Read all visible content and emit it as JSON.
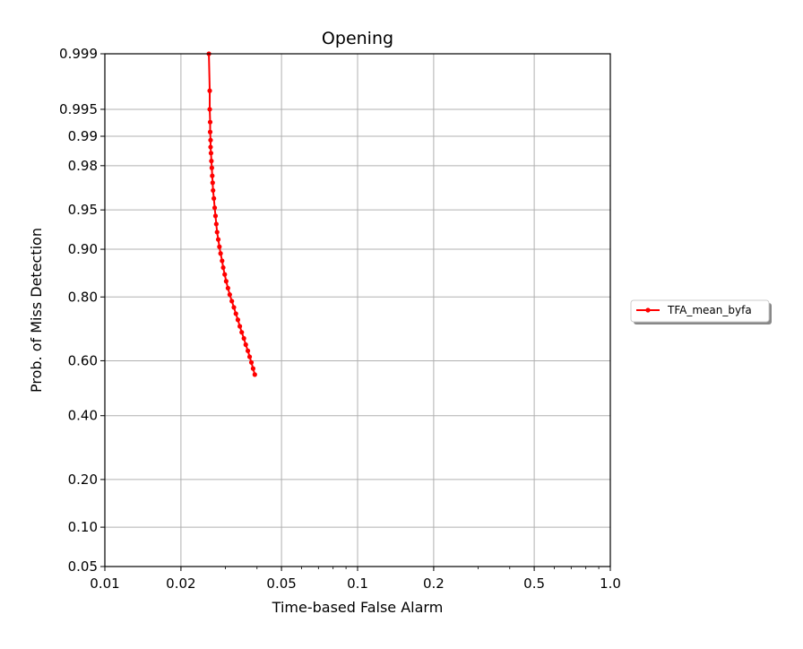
{
  "chart_data": {
    "type": "line",
    "title": "Opening",
    "xlabel": "Time-based False Alarm",
    "ylabel": "Prob. of Miss Detection",
    "x_scale": "log",
    "y_scale": "probit",
    "xlim": [
      0.01,
      1.0
    ],
    "ylim": [
      0.05,
      0.999
    ],
    "grid": true,
    "legend_position": "right",
    "x_ticks": [
      {
        "value": 0.01,
        "label": "0.01"
      },
      {
        "value": 0.02,
        "label": "0.02"
      },
      {
        "value": 0.05,
        "label": "0.05"
      },
      {
        "value": 0.1,
        "label": "0.1"
      },
      {
        "value": 0.2,
        "label": "0.2"
      },
      {
        "value": 0.5,
        "label": "0.5"
      },
      {
        "value": 1.0,
        "label": "1.0"
      }
    ],
    "y_ticks": [
      {
        "value": 0.05,
        "label": "0.05"
      },
      {
        "value": 0.1,
        "label": "0.10"
      },
      {
        "value": 0.2,
        "label": "0.20"
      },
      {
        "value": 0.4,
        "label": "0.40"
      },
      {
        "value": 0.6,
        "label": "0.60"
      },
      {
        "value": 0.8,
        "label": "0.80"
      },
      {
        "value": 0.9,
        "label": "0.90"
      },
      {
        "value": 0.95,
        "label": "0.95"
      },
      {
        "value": 0.98,
        "label": "0.98"
      },
      {
        "value": 0.99,
        "label": "0.99"
      },
      {
        "value": 0.995,
        "label": "0.995"
      },
      {
        "value": 0.999,
        "label": "0.999"
      }
    ],
    "series": [
      {
        "name": "TFA_mean_byfa",
        "color": "#ff0000",
        "marker": "circle",
        "x": [
          0.0258,
          0.026,
          0.026,
          0.0261,
          0.0261,
          0.0262,
          0.0262,
          0.0263,
          0.0264,
          0.0265,
          0.0266,
          0.0267,
          0.0268,
          0.027,
          0.0272,
          0.0274,
          0.0276,
          0.0278,
          0.0281,
          0.0284,
          0.0287,
          0.0291,
          0.0294,
          0.0298,
          0.0302,
          0.0307,
          0.0312,
          0.0318,
          0.0324,
          0.033,
          0.0336,
          0.0342,
          0.0348,
          0.0355,
          0.0361,
          0.0368,
          0.0374,
          0.038,
          0.0386,
          0.0392
        ],
        "y": [
          0.999,
          0.997,
          0.995,
          0.993,
          0.991,
          0.989,
          0.987,
          0.985,
          0.982,
          0.979,
          0.975,
          0.971,
          0.966,
          0.96,
          0.952,
          0.944,
          0.935,
          0.925,
          0.915,
          0.904,
          0.893,
          0.88,
          0.867,
          0.853,
          0.838,
          0.822,
          0.806,
          0.789,
          0.772,
          0.754,
          0.736,
          0.716,
          0.697,
          0.677,
          0.656,
          0.635,
          0.614,
          0.594,
          0.572,
          0.55
        ]
      }
    ]
  }
}
